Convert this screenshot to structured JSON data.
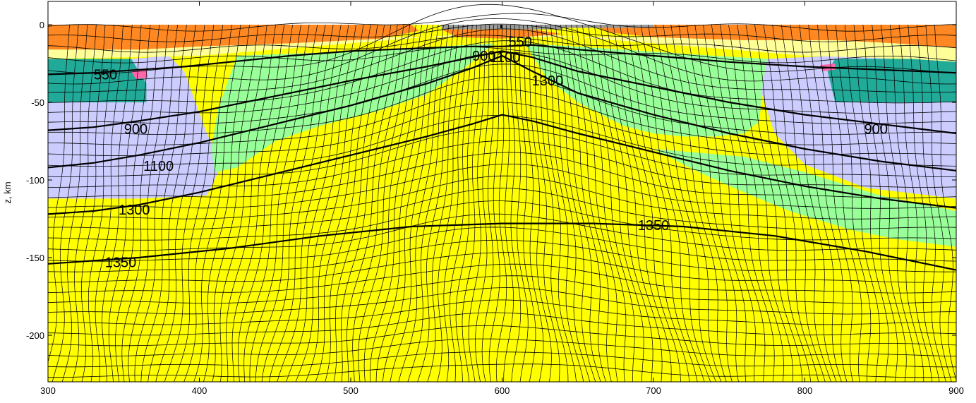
{
  "chart_data": {
    "type": "contour",
    "title": "",
    "xlabel": "",
    "ylabel": "z, km",
    "xlim": [
      300,
      900
    ],
    "ylim": [
      -230,
      15
    ],
    "x_ticks": [
      300,
      400,
      500,
      600,
      700,
      800,
      900
    ],
    "y_ticks": [
      0,
      -50,
      -100,
      -150,
      -200
    ],
    "tick_labels": {
      "x": [
        "300",
        "400",
        "500",
        "600",
        "700",
        "800",
        "900"
      ],
      "y": [
        "0",
        "-50",
        "-100",
        "-150",
        "-200"
      ]
    },
    "colors": {
      "mantle": "#ffff00",
      "lithospheric_mantle": "#99ff99",
      "lower_crust": "#ccccff",
      "middle_crust": "#22aa99",
      "upper_crust_light": "#ffff99",
      "upper_crust": "#ff8822",
      "sediments": "#999999",
      "pink": "#ff66aa"
    },
    "isotherms": [
      {
        "label": "550",
        "points": [
          [
            300,
            -32
          ],
          [
            330,
            -31
          ],
          [
            360,
            -29
          ],
          [
            390,
            -27
          ],
          [
            420,
            -24
          ],
          [
            460,
            -20
          ],
          [
            500,
            -17
          ],
          [
            550,
            -15
          ],
          [
            580,
            -14
          ],
          [
            600,
            -14
          ],
          [
            620,
            -13
          ],
          [
            650,
            -16
          ],
          [
            700,
            -20
          ],
          [
            750,
            -24
          ],
          [
            800,
            -27
          ],
          [
            850,
            -29
          ],
          [
            900,
            -31
          ]
        ]
      },
      {
        "label": "900",
        "points": [
          [
            300,
            -68
          ],
          [
            330,
            -66
          ],
          [
            360,
            -62
          ],
          [
            400,
            -56
          ],
          [
            450,
            -46
          ],
          [
            500,
            -36
          ],
          [
            550,
            -27
          ],
          [
            580,
            -21
          ],
          [
            600,
            -17
          ],
          [
            620,
            -21
          ],
          [
            650,
            -30
          ],
          [
            700,
            -40
          ],
          [
            750,
            -50
          ],
          [
            800,
            -58
          ],
          [
            850,
            -64
          ],
          [
            900,
            -70
          ]
        ]
      },
      {
        "label": "1100",
        "points": [
          [
            300,
            -92
          ],
          [
            330,
            -89
          ],
          [
            360,
            -84
          ],
          [
            400,
            -76
          ],
          [
            450,
            -64
          ],
          [
            500,
            -52
          ],
          [
            550,
            -38
          ],
          [
            580,
            -28
          ],
          [
            600,
            -20
          ],
          [
            620,
            -30
          ],
          [
            650,
            -44
          ],
          [
            700,
            -58
          ],
          [
            750,
            -70
          ],
          [
            800,
            -80
          ],
          [
            850,
            -88
          ],
          [
            900,
            -94
          ]
        ]
      },
      {
        "label": "1300",
        "points": [
          [
            300,
            -122
          ],
          [
            330,
            -120
          ],
          [
            360,
            -116
          ],
          [
            400,
            -108
          ],
          [
            450,
            -96
          ],
          [
            500,
            -84
          ],
          [
            550,
            -72
          ],
          [
            580,
            -64
          ],
          [
            600,
            -58
          ],
          [
            620,
            -62
          ],
          [
            650,
            -70
          ],
          [
            700,
            -82
          ],
          [
            750,
            -94
          ],
          [
            800,
            -104
          ],
          [
            850,
            -112
          ],
          [
            900,
            -118
          ]
        ]
      },
      {
        "label": "1350",
        "points": [
          [
            300,
            -154
          ],
          [
            360,
            -150
          ],
          [
            420,
            -144
          ],
          [
            480,
            -136
          ],
          [
            540,
            -130
          ],
          [
            600,
            -128
          ],
          [
            660,
            -128
          ],
          [
            720,
            -130
          ],
          [
            780,
            -136
          ],
          [
            840,
            -146
          ],
          [
            900,
            -158
          ]
        ]
      }
    ],
    "isotherm_labels": [
      {
        "text": "550",
        "x": 338,
        "y": -32
      },
      {
        "text": "900",
        "x": 358,
        "y": -67
      },
      {
        "text": "1100",
        "x": 373,
        "y": -91
      },
      {
        "text": "1300",
        "x": 357,
        "y": -119
      },
      {
        "text": "1350",
        "x": 348,
        "y": -153
      },
      {
        "text": "900",
        "x": 847,
        "y": -67
      },
      {
        "text": "1350",
        "x": 700,
        "y": -129
      },
      {
        "text": "900",
        "x": 588,
        "y": -20
      },
      {
        "text": "1100",
        "x": 602,
        "y": -21
      },
      {
        "text": "550",
        "x": 612,
        "y": -11
      },
      {
        "text": "1300",
        "x": 630,
        "y": -36
      }
    ]
  }
}
